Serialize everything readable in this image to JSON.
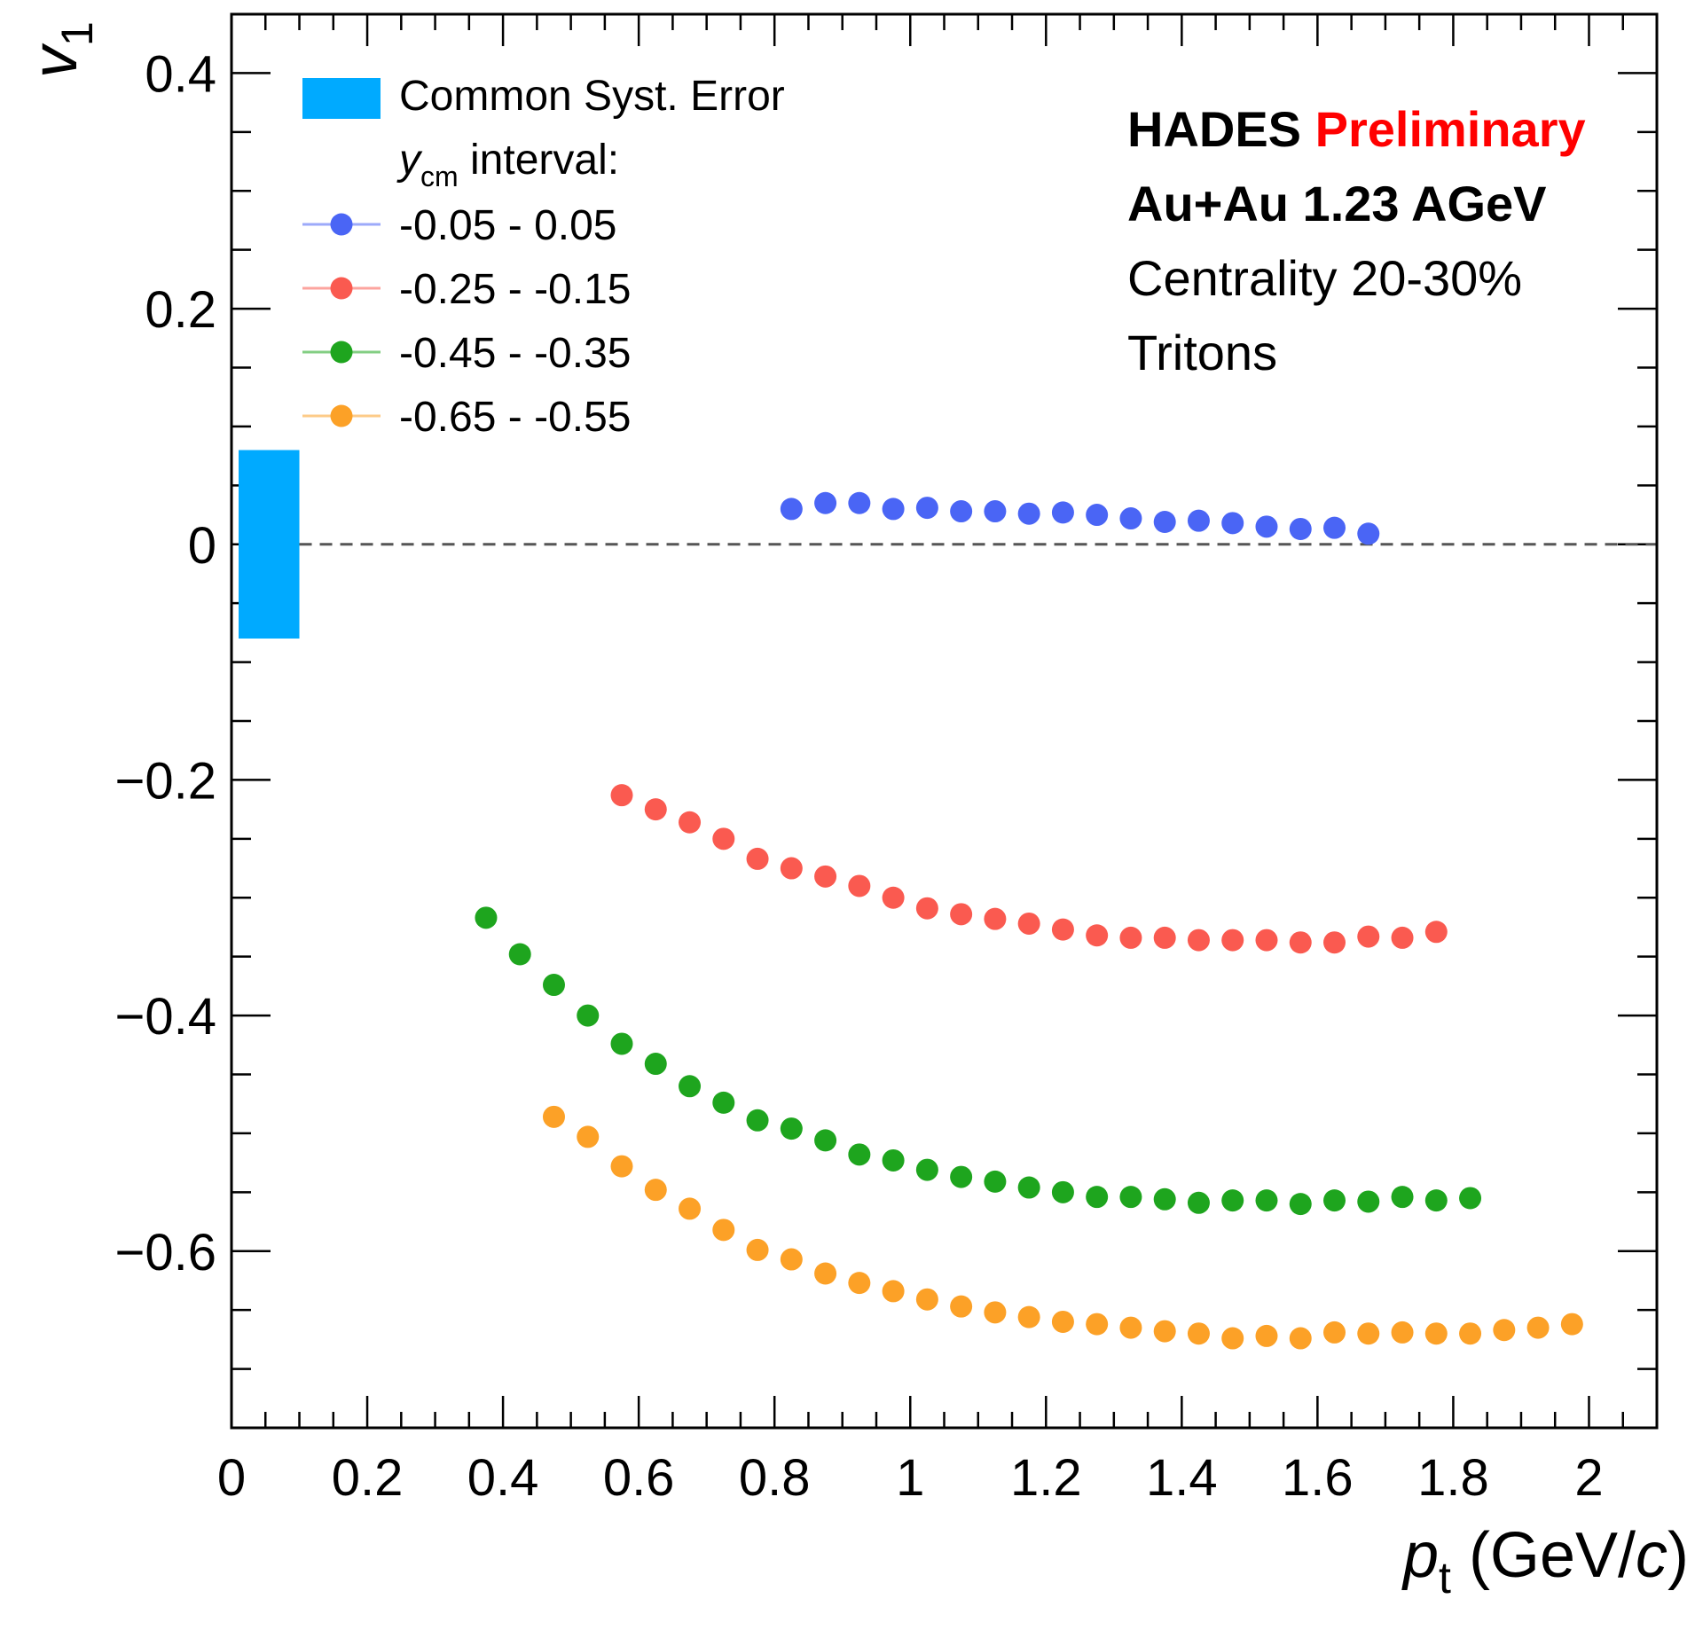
{
  "chart_data": {
    "type": "scatter",
    "xlabel": {
      "var": "p",
      "sub": "t",
      "unit_open": " (GeV/",
      "unit_var": "c",
      "unit_close": ")"
    },
    "ylabel": {
      "var": "v",
      "sub": "1"
    },
    "xlim": [
      0,
      2.1
    ],
    "ylim": [
      -0.75,
      0.45
    ],
    "x_ticks": [
      {
        "v": 0,
        "label": "0"
      },
      {
        "v": 0.2,
        "label": "0.2"
      },
      {
        "v": 0.4,
        "label": "0.4"
      },
      {
        "v": 0.6,
        "label": "0.6"
      },
      {
        "v": 0.8,
        "label": "0.8"
      },
      {
        "v": 1,
        "label": "1"
      },
      {
        "v": 1.2,
        "label": "1.2"
      },
      {
        "v": 1.4,
        "label": "1.4"
      },
      {
        "v": 1.6,
        "label": "1.6"
      },
      {
        "v": 1.8,
        "label": "1.8"
      },
      {
        "v": 2,
        "label": "2"
      }
    ],
    "y_ticks": [
      {
        "v": 0.4,
        "label": "0.4"
      },
      {
        "v": 0.2,
        "label": "0.2"
      },
      {
        "v": 0,
        "label": "0"
      },
      {
        "v": -0.2,
        "label": "−0.2"
      },
      {
        "v": -0.4,
        "label": "−0.4"
      },
      {
        "v": -0.6,
        "label": "−0.6"
      }
    ],
    "reference_line": {
      "y": 0,
      "style": "dashed",
      "color": "#555555"
    },
    "systematic_band": {
      "label": "Common Syst. Error",
      "x": [
        0,
        0.1
      ],
      "y": [
        -0.08,
        0.08
      ],
      "color": "#00aaff"
    },
    "legend": {
      "placement": "top-left",
      "interval_title": {
        "var": "y",
        "sub": "cm",
        "text": " interval:"
      }
    },
    "annotations": [
      {
        "parts": [
          {
            "text": "HADES ",
            "color": "#000000"
          },
          {
            "text": "Preliminary",
            "color": "#ff0000"
          }
        ],
        "bold": true
      },
      {
        "parts": [
          {
            "text": "Au+Au 1.23 AGeV",
            "color": "#000000"
          }
        ],
        "bold": true
      },
      {
        "parts": [
          {
            "text": "Centrality 20-30%",
            "color": "#000000"
          }
        ],
        "bold": false
      },
      {
        "parts": [
          {
            "text": "Tritons",
            "color": "#000000"
          }
        ],
        "bold": false
      }
    ],
    "series": [
      {
        "name": "-0.05 - 0.05",
        "color": "#4a65f5",
        "x": [
          0.825,
          0.875,
          0.925,
          0.975,
          1.025,
          1.075,
          1.125,
          1.175,
          1.225,
          1.275,
          1.325,
          1.375,
          1.425,
          1.475,
          1.525,
          1.575,
          1.625,
          1.675
        ],
        "y": [
          0.03,
          0.035,
          0.035,
          0.03,
          0.031,
          0.028,
          0.028,
          0.026,
          0.027,
          0.025,
          0.022,
          0.019,
          0.02,
          0.018,
          0.015,
          0.013,
          0.014,
          0.009
        ]
      },
      {
        "name": "-0.25 - -0.15",
        "color": "#fa5a50",
        "x": [
          0.575,
          0.625,
          0.675,
          0.725,
          0.775,
          0.825,
          0.875,
          0.925,
          0.975,
          1.025,
          1.075,
          1.125,
          1.175,
          1.225,
          1.275,
          1.325,
          1.375,
          1.425,
          1.475,
          1.525,
          1.575,
          1.625,
          1.675,
          1.725,
          1.775
        ],
        "y": [
          -0.213,
          -0.225,
          -0.236,
          -0.25,
          -0.267,
          -0.275,
          -0.282,
          -0.29,
          -0.3,
          -0.309,
          -0.314,
          -0.318,
          -0.322,
          -0.327,
          -0.332,
          -0.334,
          -0.334,
          -0.336,
          -0.336,
          -0.336,
          -0.338,
          -0.338,
          -0.333,
          -0.334,
          -0.329
        ]
      },
      {
        "name": "-0.45 - -0.35",
        "color": "#1ea51e",
        "x": [
          0.375,
          0.425,
          0.475,
          0.525,
          0.575,
          0.625,
          0.675,
          0.725,
          0.775,
          0.825,
          0.875,
          0.925,
          0.975,
          1.025,
          1.075,
          1.125,
          1.175,
          1.225,
          1.275,
          1.325,
          1.375,
          1.425,
          1.475,
          1.525,
          1.575,
          1.625,
          1.675,
          1.725,
          1.775,
          1.825
        ],
        "y": [
          -0.317,
          -0.348,
          -0.374,
          -0.4,
          -0.424,
          -0.441,
          -0.46,
          -0.474,
          -0.489,
          -0.496,
          -0.506,
          -0.518,
          -0.523,
          -0.531,
          -0.537,
          -0.541,
          -0.546,
          -0.55,
          -0.554,
          -0.554,
          -0.556,
          -0.559,
          -0.557,
          -0.557,
          -0.56,
          -0.557,
          -0.558,
          -0.554,
          -0.557,
          -0.555
        ]
      },
      {
        "name": "-0.65 - -0.55",
        "color": "#fca127",
        "x": [
          0.475,
          0.525,
          0.575,
          0.625,
          0.675,
          0.725,
          0.775,
          0.825,
          0.875,
          0.925,
          0.975,
          1.025,
          1.075,
          1.125,
          1.175,
          1.225,
          1.275,
          1.325,
          1.375,
          1.425,
          1.475,
          1.525,
          1.575,
          1.625,
          1.675,
          1.725,
          1.775,
          1.825,
          1.875,
          1.925,
          1.975
        ],
        "y": [
          -0.486,
          -0.503,
          -0.528,
          -0.548,
          -0.564,
          -0.582,
          -0.599,
          -0.607,
          -0.619,
          -0.627,
          -0.634,
          -0.641,
          -0.647,
          -0.652,
          -0.656,
          -0.66,
          -0.662,
          -0.665,
          -0.668,
          -0.67,
          -0.674,
          -0.672,
          -0.674,
          -0.669,
          -0.67,
          -0.669,
          -0.67,
          -0.67,
          -0.667,
          -0.665,
          -0.662
        ]
      }
    ]
  }
}
